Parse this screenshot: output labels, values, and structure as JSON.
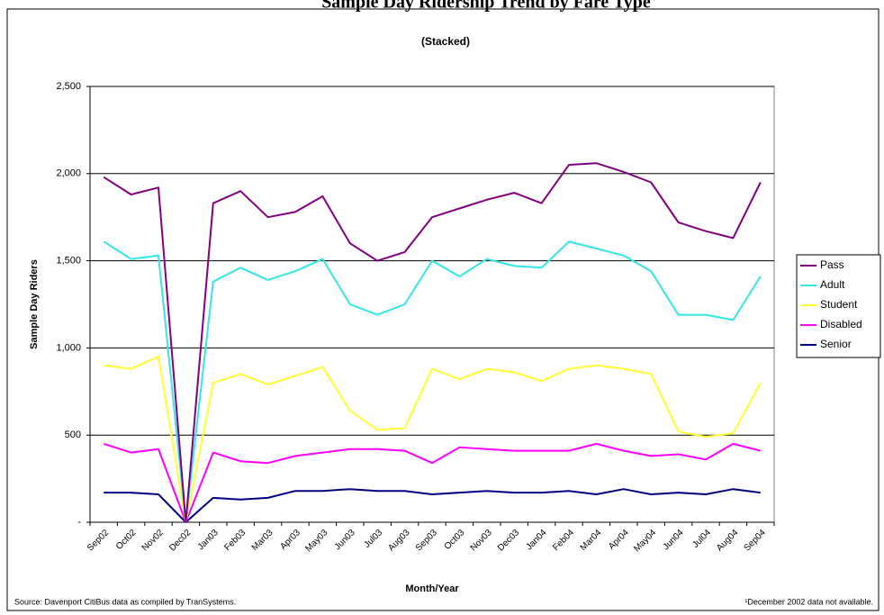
{
  "chart_data": {
    "type": "stacked_line",
    "title": "Sample Day Ridership Trend by Fare Type",
    "subtitle": "(Stacked)",
    "x_label": "Month/Year",
    "y_label": "Sample Day Riders",
    "source": "Source: Davenport CitiBus data as compiled by TranSystems.",
    "footnote": "¹December 2002 data not available.",
    "categories": [
      "Sep02",
      "Oct02",
      "Nov02",
      "Dec02",
      "Jan03",
      "Feb03",
      "Mar03",
      "Apr03",
      "May03",
      "Jun03",
      "Jul03",
      "Aug03",
      "Sep03",
      "Oct03",
      "Nov03",
      "Dec03",
      "Jan04",
      "Feb04",
      "Mar04",
      "Apr04",
      "May04",
      "Jun04",
      "Jul04",
      "Aug04",
      "Sep04"
    ],
    "series": [
      {
        "name": "Pass",
        "color": "#800080",
        "values": [
          370,
          370,
          390,
          0,
          450,
          440,
          360,
          340,
          360,
          350,
          310,
          300,
          250,
          390,
          340,
          420,
          370,
          440,
          490,
          480,
          510,
          530,
          480,
          470,
          540
        ]
      },
      {
        "name": "Adult",
        "color": "#33e6e6",
        "values": [
          710,
          630,
          580,
          0,
          580,
          610,
          600,
          600,
          620,
          610,
          660,
          710,
          620,
          590,
          630,
          610,
          650,
          730,
          670,
          650,
          590,
          670,
          700,
          650,
          610
        ]
      },
      {
        "name": "Student",
        "color": "#ffff33",
        "values": [
          450,
          480,
          530,
          0,
          400,
          500,
          450,
          460,
          490,
          220,
          110,
          130,
          540,
          390,
          460,
          450,
          400,
          470,
          450,
          470,
          470,
          130,
          130,
          60,
          390
        ]
      },
      {
        "name": "Disabled",
        "color": "#ff00ff",
        "values": [
          280,
          230,
          260,
          0,
          260,
          220,
          200,
          200,
          220,
          230,
          240,
          230,
          180,
          260,
          240,
          240,
          240,
          230,
          290,
          220,
          220,
          220,
          200,
          260,
          240
        ]
      },
      {
        "name": "Senior",
        "color": "#000080",
        "values": [
          170,
          170,
          160,
          0,
          140,
          130,
          140,
          180,
          180,
          190,
          180,
          180,
          160,
          170,
          180,
          170,
          170,
          180,
          160,
          190,
          160,
          170,
          160,
          190,
          170
        ]
      }
    ],
    "ylim": [
      0,
      2500
    ],
    "yticks": [
      {
        "value": 0,
        "label": "-"
      },
      500,
      {
        "value": 1000,
        "label": "1,000"
      },
      {
        "value": 1500,
        "label": "1,500"
      },
      {
        "value": 2000,
        "label": "2,000"
      },
      {
        "value": 2500,
        "label": "2,500"
      }
    ],
    "grid": true,
    "legend": "right"
  }
}
